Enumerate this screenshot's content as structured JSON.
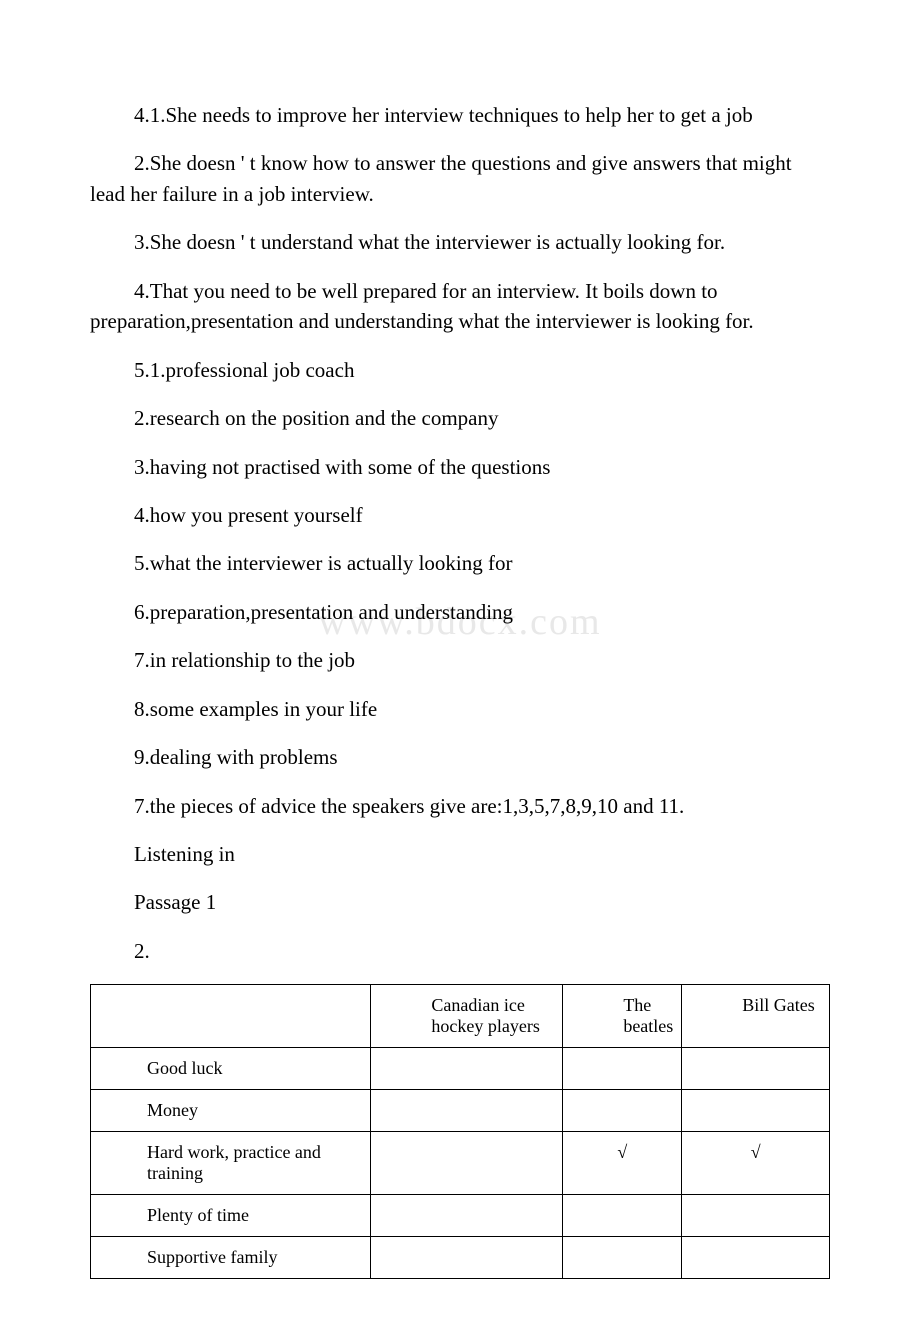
{
  "watermark": "www.bdocx.com",
  "paragraphs": {
    "p1": "4.1.She needs to improve her interview techniques to help her to get a job",
    "p2": "2.She doesn ' t know how to answer the questions and give answers that might lead her failure in a job interview.",
    "p3": "3.She doesn ' t understand what the interviewer is actually looking for.",
    "p4": "4.That you need to be well prepared for an interview. It boils down to preparation,presentation and understanding what the interviewer is looking for.",
    "p5": "5.1.professional job coach",
    "p6": "2.research on the position and the company",
    "p7": "3.having not practised with some of the questions",
    "p8": "4.how you present yourself",
    "p9": "5.what the interviewer is actually looking for",
    "p10": "6.preparation,presentation and understanding",
    "p11": "7.in relationship to the job",
    "p12": "8.some examples in your life",
    "p13": "9.dealing with problems",
    "p14": "7.the pieces of advice the speakers give are:1,3,5,7,8,9,10 and 11.",
    "p15": "Listening in",
    "p16": "Passage 1",
    "p17": "2."
  },
  "table": {
    "headers": {
      "c1": "",
      "c2": "Canadian ice hockey players",
      "c3": "The beatles",
      "c4": "Bill Gates"
    },
    "rows": [
      {
        "label": "Good luck",
        "c2": "",
        "c3": "",
        "c4": ""
      },
      {
        "label": "Money",
        "c2": "",
        "c3": "",
        "c4": ""
      },
      {
        "label": "Hard work, practice and training",
        "c2": "",
        "c3": "√",
        "c4": "√"
      },
      {
        "label": "Plenty of time",
        "c2": "",
        "c3": "",
        "c4": ""
      },
      {
        "label": "Supportive family",
        "c2": "",
        "c3": "",
        "c4": ""
      }
    ]
  },
  "colors": {
    "text": "#000000",
    "background": "#ffffff",
    "watermark": "#e8e8e8",
    "border": "#000000"
  },
  "typography": {
    "body_fontsize": 21,
    "table_fontsize": 18,
    "watermark_fontsize": 38,
    "font_family": "Times New Roman"
  }
}
